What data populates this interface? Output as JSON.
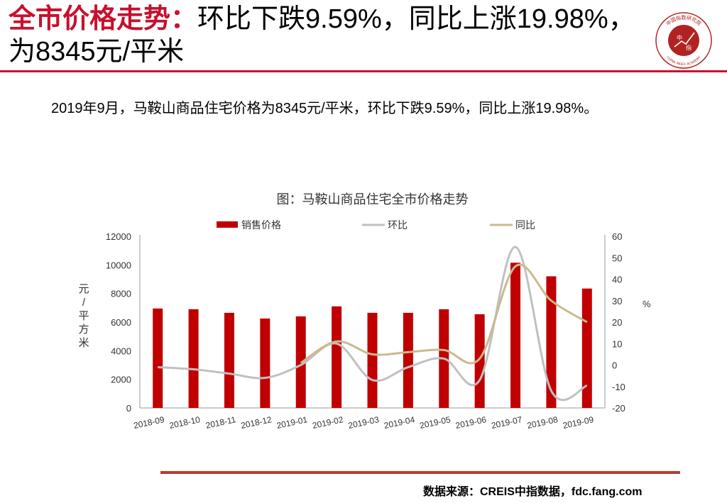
{
  "header": {
    "title_highlight": "全市价格走势：",
    "title_rest": "环比下跌9.59%，同比上涨19.98%，为8345元/平米"
  },
  "logo": {
    "ring_text": "中国指数研究院",
    "ring_text_en": "CHINA INDEX ACADEMY",
    "center_top": "中",
    "center_bottom": "指"
  },
  "summary": "2019年9月，马鞍山商品住宅价格为8345元/平米，环比下跌9.59%，同比上涨19.98%。",
  "footer": {
    "source": "数据来源：CREIS中指数据，fdc.fang.com"
  },
  "colors": {
    "accent": "#c8102e",
    "bar": "#c00000",
    "mom": "#c0c0c0",
    "yoy": "#c9ba8f"
  },
  "chart_data": {
    "type": "bar",
    "title": "图：马鞍山商品住宅全市价格走势",
    "categories": [
      "2018-09",
      "2018-10",
      "2018-11",
      "2018-12",
      "2019-01",
      "2019-02",
      "2019-03",
      "2019-04",
      "2019-05",
      "2019-06",
      "2019-07",
      "2019-08",
      "2019-09"
    ],
    "series": [
      {
        "name": "销售价格",
        "type": "bar",
        "axis": "left",
        "values": [
          6950,
          6900,
          6650,
          6250,
          6400,
          7100,
          6650,
          6650,
          6900,
          6550,
          10150,
          9200,
          8345
        ]
      },
      {
        "name": "环比",
        "type": "line",
        "axis": "right",
        "values": [
          -1,
          -2,
          -4,
          -6,
          0,
          10,
          -7,
          -1,
          3,
          -7,
          55,
          -12,
          -9.59
        ]
      },
      {
        "name": "同比",
        "type": "line",
        "axis": "right",
        "values": [
          null,
          null,
          null,
          null,
          1,
          11,
          5,
          6,
          7,
          3,
          46,
          30,
          19.98
        ]
      }
    ],
    "ylabel": "元/平方米",
    "ylabel_right": "%",
    "ylim": [
      0,
      12000
    ],
    "yticks": [
      0,
      2000,
      4000,
      6000,
      8000,
      10000,
      12000
    ],
    "ylim_right": [
      -20,
      60
    ],
    "yticks_right": [
      -20,
      -10,
      0,
      10,
      20,
      30,
      40,
      50,
      60
    ],
    "legend": "top",
    "grid": false
  }
}
